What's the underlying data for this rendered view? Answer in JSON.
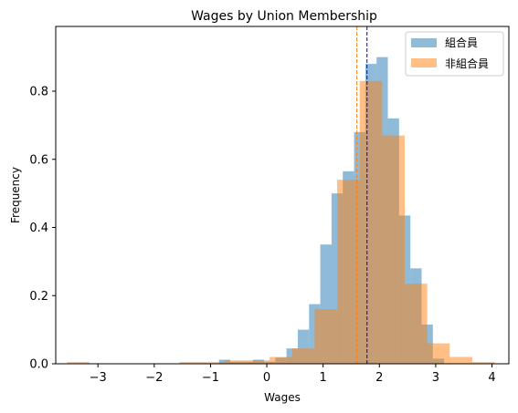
{
  "chart_data": {
    "type": "bar",
    "title": "Wages by Union Membership",
    "xlabel": "Wages",
    "ylabel": "Frequency",
    "xlim": [
      -3.75,
      4.3
    ],
    "ylim": [
      0,
      0.99
    ],
    "xticks": [
      -3,
      -2,
      -1,
      0,
      1,
      2,
      3,
      4
    ],
    "xtick_labels": [
      "−3",
      "−2",
      "−1",
      "0",
      "1",
      "2",
      "3",
      "4"
    ],
    "yticks": [
      0.0,
      0.2,
      0.4,
      0.6,
      0.8
    ],
    "ytick_labels": [
      "0.0",
      "0.2",
      "0.4",
      "0.6",
      "0.8"
    ],
    "grid": false,
    "legend_position": "top-right",
    "series": [
      {
        "name": "組合員",
        "color": "#1f77b4",
        "opacity": 0.5,
        "bins": [
          {
            "x0": -0.85,
            "x1": -0.65,
            "y": 0.012
          },
          {
            "x0": -0.65,
            "x1": -0.45,
            "y": 0.006
          },
          {
            "x0": -0.45,
            "x1": -0.25,
            "y": 0.006
          },
          {
            "x0": -0.25,
            "x1": -0.05,
            "y": 0.012
          },
          {
            "x0": -0.05,
            "x1": 0.15,
            "y": 0.006
          },
          {
            "x0": 0.15,
            "x1": 0.35,
            "y": 0.018
          },
          {
            "x0": 0.35,
            "x1": 0.55,
            "y": 0.045
          },
          {
            "x0": 0.55,
            "x1": 0.75,
            "y": 0.1
          },
          {
            "x0": 0.75,
            "x1": 0.95,
            "y": 0.175
          },
          {
            "x0": 0.95,
            "x1": 1.15,
            "y": 0.35
          },
          {
            "x0": 1.15,
            "x1": 1.35,
            "y": 0.5
          },
          {
            "x0": 1.35,
            "x1": 1.55,
            "y": 0.565
          },
          {
            "x0": 1.55,
            "x1": 1.75,
            "y": 0.68
          },
          {
            "x0": 1.75,
            "x1": 1.95,
            "y": 0.88
          },
          {
            "x0": 1.95,
            "x1": 2.15,
            "y": 0.9
          },
          {
            "x0": 2.15,
            "x1": 2.35,
            "y": 0.72
          },
          {
            "x0": 2.35,
            "x1": 2.55,
            "y": 0.435
          },
          {
            "x0": 2.55,
            "x1": 2.75,
            "y": 0.28
          },
          {
            "x0": 2.75,
            "x1": 2.95,
            "y": 0.115
          },
          {
            "x0": 2.95,
            "x1": 3.15,
            "y": 0.015
          }
        ],
        "mean": 1.78
      },
      {
        "name": "非組合員",
        "color": "#ff7f0e",
        "opacity": 0.5,
        "bins": [
          {
            "x0": -3.55,
            "x1": -3.15,
            "y": 0.005
          },
          {
            "x0": -1.55,
            "x1": -1.15,
            "y": 0.005
          },
          {
            "x0": -1.15,
            "x1": -0.75,
            "y": 0.005
          },
          {
            "x0": -0.75,
            "x1": -0.35,
            "y": 0.01
          },
          {
            "x0": -0.35,
            "x1": 0.05,
            "y": 0.01
          },
          {
            "x0": 0.05,
            "x1": 0.45,
            "y": 0.02
          },
          {
            "x0": 0.45,
            "x1": 0.85,
            "y": 0.045
          },
          {
            "x0": 0.85,
            "x1": 1.25,
            "y": 0.16
          },
          {
            "x0": 1.25,
            "x1": 1.65,
            "y": 0.54
          },
          {
            "x0": 1.65,
            "x1": 2.05,
            "y": 0.83
          },
          {
            "x0": 2.05,
            "x1": 2.45,
            "y": 0.67
          },
          {
            "x0": 2.45,
            "x1": 2.85,
            "y": 0.235
          },
          {
            "x0": 2.85,
            "x1": 3.25,
            "y": 0.06
          },
          {
            "x0": 3.25,
            "x1": 3.65,
            "y": 0.02
          },
          {
            "x0": 3.65,
            "x1": 4.05,
            "y": 0.005
          }
        ],
        "mean": 1.6
      }
    ],
    "mean_lines": [
      {
        "series": "組合員",
        "x": 1.78,
        "color": "#0000ff",
        "style": "dashed"
      },
      {
        "series": "非組合員",
        "x": 1.6,
        "color": "#ff7f0e",
        "style": "dashed"
      }
    ]
  }
}
